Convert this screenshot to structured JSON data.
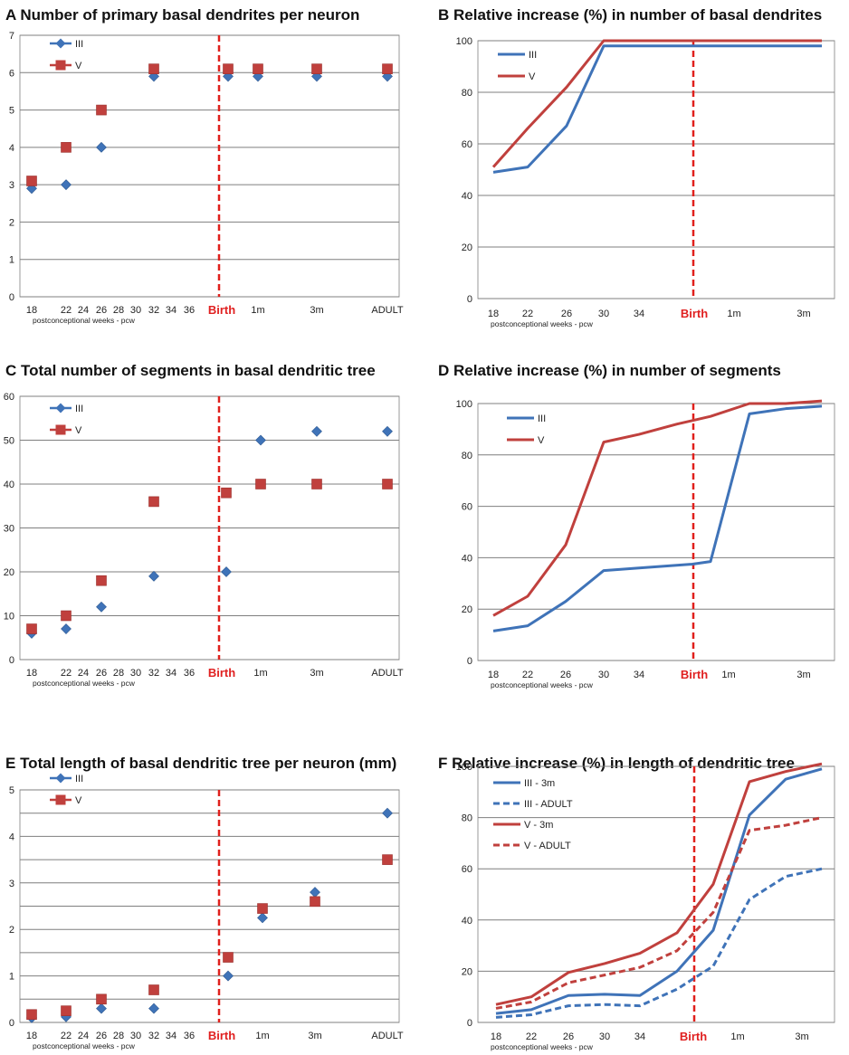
{
  "figure_domain": "multi-panel chart",
  "colors": {
    "series_III": "#3f73b8",
    "series_V": "#c0403d",
    "birth_line": "#e0201c",
    "grid": "#7f7f7f"
  },
  "chart_data": [
    {
      "id": "A",
      "type": "scatter",
      "title": "Number of primary basal dendrites per neuron",
      "xlabel": "postconceptional weeks - pcw",
      "ylabel": "",
      "ylim": [
        0,
        7
      ],
      "yticks": [
        0,
        1,
        2,
        3,
        4,
        5,
        6,
        7
      ],
      "x_tick_labels": [
        "18",
        "22",
        "24",
        "26",
        "28",
        "30",
        "32",
        "34",
        "36",
        "Birth",
        "1m",
        "3m",
        "ADULT"
      ],
      "birth_label": "Birth",
      "legend": [
        "III",
        "V"
      ],
      "series": [
        {
          "name": "III",
          "marker": "diamond",
          "points": [
            [
              "18",
              2.9
            ],
            [
              "22",
              3.0
            ],
            [
              "26",
              4.0
            ],
            [
              "32",
              5.9
            ],
            [
              "Birth+",
              5.9
            ],
            [
              "1m",
              5.9
            ],
            [
              "3m",
              5.9
            ],
            [
              "ADULT",
              5.9
            ]
          ]
        },
        {
          "name": "V",
          "marker": "square",
          "points": [
            [
              "18",
              3.1
            ],
            [
              "22",
              4.0
            ],
            [
              "26",
              5.0
            ],
            [
              "32",
              6.1
            ],
            [
              "Birth+",
              6.1
            ],
            [
              "1m",
              6.1
            ],
            [
              "3m",
              6.1
            ],
            [
              "ADULT",
              6.1
            ]
          ]
        }
      ]
    },
    {
      "id": "B",
      "type": "line",
      "title": "Relative increase (%) in number of basal dendrites",
      "xlabel": "postconceptional weeks - pcw",
      "ylabel": "",
      "ylim": [
        0,
        100
      ],
      "yticks": [
        0,
        20,
        40,
        60,
        80,
        100
      ],
      "x_tick_labels": [
        "18",
        "22",
        "26",
        "30",
        "34",
        "Birth",
        "1m",
        "3m"
      ],
      "birth_label": "Birth",
      "legend": [
        "III",
        "V"
      ],
      "series": [
        {
          "name": "III",
          "style": "solid",
          "points": [
            [
              "18",
              49
            ],
            [
              "22",
              51
            ],
            [
              "26",
              67
            ],
            [
              "30",
              98
            ],
            [
              "34",
              98
            ],
            [
              "Birth",
              98
            ],
            [
              "1m",
              98
            ],
            [
              "3m+",
              98
            ]
          ]
        },
        {
          "name": "V",
          "style": "solid",
          "points": [
            [
              "18",
              51
            ],
            [
              "22",
              66
            ],
            [
              "26",
              82
            ],
            [
              "30",
              100
            ],
            [
              "34",
              100
            ],
            [
              "Birth",
              100
            ],
            [
              "1m",
              100
            ],
            [
              "3m+",
              100
            ]
          ]
        }
      ]
    },
    {
      "id": "C",
      "type": "scatter",
      "title": "Total number of segments in basal dendritic tree",
      "xlabel": "postconceptional weeks - pcw",
      "ylabel": "",
      "ylim": [
        0,
        60
      ],
      "yticks": [
        0,
        10,
        20,
        30,
        40,
        50,
        60
      ],
      "x_tick_labels": [
        "18",
        "22",
        "24",
        "26",
        "28",
        "30",
        "32",
        "34",
        "36",
        "Birth",
        "1m",
        "3m",
        "ADULT"
      ],
      "birth_label": "Birth",
      "legend": [
        "III",
        "V"
      ],
      "series": [
        {
          "name": "III",
          "marker": "diamond",
          "points": [
            [
              "18",
              6
            ],
            [
              "22",
              7
            ],
            [
              "26",
              12
            ],
            [
              "32",
              19
            ],
            [
              "Birth+",
              20
            ],
            [
              "1m",
              50
            ],
            [
              "3m",
              52
            ],
            [
              "ADULT",
              52
            ]
          ]
        },
        {
          "name": "V",
          "marker": "square",
          "points": [
            [
              "18",
              7
            ],
            [
              "22",
              10
            ],
            [
              "26",
              18
            ],
            [
              "32",
              36
            ],
            [
              "Birth+",
              38
            ],
            [
              "1m",
              40
            ],
            [
              "3m",
              40
            ],
            [
              "ADULT",
              40
            ]
          ]
        }
      ]
    },
    {
      "id": "D",
      "type": "line",
      "title": "Relative increase (%) in number of segments",
      "xlabel": "postconceptional weeks - pcw",
      "ylabel": "",
      "ylim": [
        0,
        100
      ],
      "yticks": [
        0,
        20,
        40,
        60,
        80,
        100
      ],
      "x_tick_labels": [
        "18",
        "22",
        "26",
        "30",
        "34",
        "Birth",
        "1m",
        "3m"
      ],
      "birth_label": "Birth",
      "legend": [
        "III",
        "V"
      ],
      "series": [
        {
          "name": "III",
          "style": "solid",
          "points": [
            [
              "18",
              11.5
            ],
            [
              "22",
              13.5
            ],
            [
              "26",
              23
            ],
            [
              "30",
              35
            ],
            [
              "34",
              36
            ],
            [
              "Birth",
              37.5
            ],
            [
              "Birth+",
              38.5
            ],
            [
              "1m",
              96
            ],
            [
              "3m",
              98
            ],
            [
              "3m+",
              99
            ]
          ]
        },
        {
          "name": "V",
          "style": "solid",
          "points": [
            [
              "18",
              17.5
            ],
            [
              "22",
              25
            ],
            [
              "26",
              45
            ],
            [
              "30",
              85
            ],
            [
              "34",
              88
            ],
            [
              "Birth-",
              92
            ],
            [
              "Birth+",
              95
            ],
            [
              "1m",
              100
            ],
            [
              "3m",
              100
            ],
            [
              "3m+",
              101
            ]
          ]
        }
      ]
    },
    {
      "id": "E",
      "type": "scatter",
      "title": "Total length of basal dendritic tree per neuron (mm)",
      "xlabel": "postconceptional weeks - pcw",
      "ylabel": "",
      "ylim": [
        0,
        5
      ],
      "yticks": [
        0,
        0.5,
        1,
        1.5,
        2,
        2.5,
        3,
        3.5,
        4,
        4.5,
        5
      ],
      "ytick_labels": [
        "0",
        "",
        "1",
        "",
        "2",
        "",
        "3",
        "",
        "4",
        "",
        "5"
      ],
      "x_tick_labels": [
        "18",
        "22",
        "24",
        "26",
        "28",
        "30",
        "32",
        "34",
        "36",
        "Birth",
        "1m",
        "3m",
        "ADULT"
      ],
      "birth_label": "Birth",
      "legend": [
        "III",
        "V"
      ],
      "series": [
        {
          "name": "III",
          "marker": "diamond",
          "points": [
            [
              "18",
              0.1
            ],
            [
              "22",
              0.12
            ],
            [
              "26",
              0.3
            ],
            [
              "32",
              0.3
            ],
            [
              "Birth+",
              1.0
            ],
            [
              "1m",
              2.25
            ],
            [
              "3m",
              2.8
            ],
            [
              "ADULT",
              4.5
            ]
          ]
        },
        {
          "name": "V",
          "marker": "square",
          "points": [
            [
              "18",
              0.17
            ],
            [
              "22",
              0.25
            ],
            [
              "26",
              0.5
            ],
            [
              "32",
              0.7
            ],
            [
              "Birth+",
              1.4
            ],
            [
              "1m",
              2.45
            ],
            [
              "3m",
              2.6
            ],
            [
              "ADULT",
              3.5
            ]
          ]
        }
      ]
    },
    {
      "id": "F",
      "type": "line",
      "title": "Relative increase (%) in length of dendritic tree",
      "xlabel": "postconceptional weeks - pcw",
      "ylabel": "",
      "ylim": [
        0,
        100
      ],
      "yticks": [
        0,
        20,
        40,
        60,
        80,
        100
      ],
      "x_tick_labels": [
        "18",
        "22",
        "26",
        "30",
        "34",
        "Birth",
        "1m",
        "3m"
      ],
      "birth_label": "Birth",
      "legend": [
        "III - 3m",
        "III - ADULT",
        "V - 3m",
        "V - ADULT"
      ],
      "series": [
        {
          "name": "III - 3m",
          "color": "III",
          "style": "solid",
          "points": [
            [
              "18",
              3.5
            ],
            [
              "22",
              5
            ],
            [
              "26",
              10.5
            ],
            [
              "30",
              11
            ],
            [
              "34",
              10.5
            ],
            [
              "Birth-",
              20
            ],
            [
              "Birth+",
              36
            ],
            [
              "1m",
              81
            ],
            [
              "3m",
              95
            ],
            [
              "3m+",
              99
            ]
          ]
        },
        {
          "name": "III - ADULT",
          "color": "III",
          "style": "dashed",
          "points": [
            [
              "18",
              2
            ],
            [
              "22",
              3
            ],
            [
              "26",
              6.5
            ],
            [
              "30",
              7
            ],
            [
              "34",
              6.5
            ],
            [
              "Birth-",
              13
            ],
            [
              "Birth+",
              22
            ],
            [
              "1m",
              48
            ],
            [
              "3m",
              57
            ],
            [
              "3m+",
              60
            ]
          ]
        },
        {
          "name": "V - 3m",
          "color": "V",
          "style": "solid",
          "points": [
            [
              "18",
              7
            ],
            [
              "22",
              10
            ],
            [
              "26",
              19.5
            ],
            [
              "30",
              23
            ],
            [
              "34",
              27
            ],
            [
              "Birth-",
              35
            ],
            [
              "Birth+",
              54
            ],
            [
              "1m",
              94
            ],
            [
              "3m",
              98
            ],
            [
              "3m+",
              101
            ]
          ]
        },
        {
          "name": "V - ADULT",
          "color": "V",
          "style": "dashed",
          "points": [
            [
              "18",
              5.5
            ],
            [
              "22",
              8
            ],
            [
              "26",
              15.5
            ],
            [
              "30",
              18.5
            ],
            [
              "34",
              21.5
            ],
            [
              "Birth-",
              28
            ],
            [
              "Birth+",
              43
            ],
            [
              "1m",
              75
            ],
            [
              "3m",
              77
            ],
            [
              "3m+",
              80
            ]
          ]
        }
      ]
    }
  ]
}
